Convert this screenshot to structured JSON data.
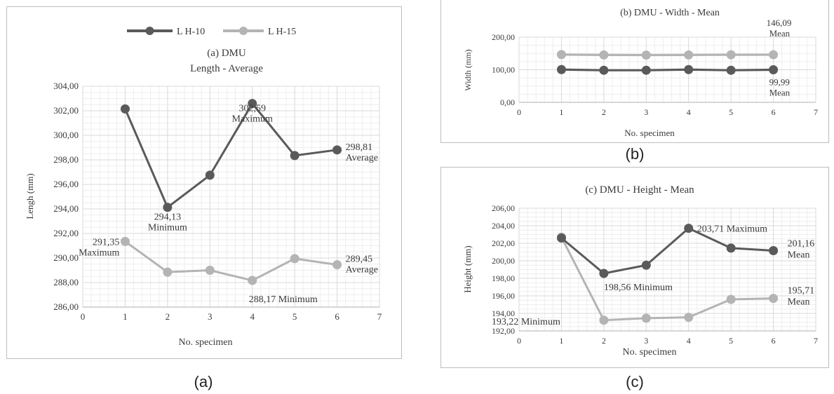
{
  "captions": {
    "a": "(a)",
    "b": "(b)",
    "c": "(c)"
  },
  "colors": {
    "lh10": "#5a5a5a",
    "lh15": "#b4b4b4",
    "grid": "#d9d9d9",
    "axis": "#bfbfbf",
    "text": "#3a3a3a"
  },
  "chart_data": [
    {
      "id": "a",
      "type": "line",
      "title": "(a) DMU",
      "subtitle": "Length - Average",
      "xlabel": "No. specimen",
      "ylabel": "Lengh (mm)",
      "xlim": [
        0,
        7
      ],
      "ylim": [
        286,
        304
      ],
      "yticks": [
        286,
        288,
        290,
        292,
        294,
        296,
        298,
        300,
        302,
        304
      ],
      "ytick_labels": [
        "286,00",
        "288,00",
        "290,00",
        "292,00",
        "294,00",
        "296,00",
        "298,00",
        "300,00",
        "302,00",
        "304,00"
      ],
      "xticks": [
        0,
        1,
        2,
        3,
        4,
        5,
        6,
        7
      ],
      "legend_position": "top",
      "x": [
        1,
        2,
        3,
        4,
        5,
        6
      ],
      "series": [
        {
          "name": "L H-10",
          "values": [
            302.15,
            294.13,
            296.75,
            302.59,
            298.35,
            298.81
          ]
        },
        {
          "name": "L  H-15",
          "values": [
            291.35,
            288.85,
            289.0,
            288.17,
            289.95,
            289.45
          ]
        }
      ],
      "annotations": [
        {
          "text": "294,13",
          "x": 2,
          "y": 294.13
        },
        {
          "text": "Minimum",
          "x": 2,
          "y": 294.13
        },
        {
          "text": "302,59",
          "x": 4,
          "y": 302.59
        },
        {
          "text": "Maximum",
          "x": 4,
          "y": 302.59
        },
        {
          "text": "298,81",
          "x": 6,
          "y": 298.81
        },
        {
          "text": "Average",
          "x": 6,
          "y": 298.81
        },
        {
          "text": "291,35",
          "x": 1,
          "y": 291.35
        },
        {
          "text": "Maximum",
          "x": 1,
          "y": 291.35
        },
        {
          "text": "289,45",
          "x": 6,
          "y": 289.45
        },
        {
          "text": "Average",
          "x": 6,
          "y": 289.45
        },
        {
          "text": "288,17 Minimum",
          "x": 4,
          "y": 288.17
        }
      ]
    },
    {
      "id": "b",
      "type": "line",
      "title": "(b) DMU - Width - Mean",
      "xlabel": "No. specimen",
      "ylabel": "Width (mm)",
      "xlim": [
        0,
        7
      ],
      "ylim": [
        0,
        200
      ],
      "yticks": [
        0,
        100,
        200
      ],
      "ytick_labels": [
        "0,00",
        "100,00",
        "200,00"
      ],
      "xticks": [
        0,
        1,
        2,
        3,
        4,
        5,
        6,
        7
      ],
      "x": [
        1,
        2,
        3,
        4,
        5,
        6
      ],
      "series": [
        {
          "name": "L H-10",
          "values": [
            100.5,
            98.5,
            98.5,
            100.5,
            98.5,
            99.99
          ]
        },
        {
          "name": "L  H-15",
          "values": [
            146.5,
            145.5,
            145.0,
            145.5,
            146.0,
            146.09
          ]
        }
      ],
      "annotations": [
        {
          "text": "146,09",
          "x": 6,
          "y": 146.09
        },
        {
          "text": "Mean",
          "x": 6,
          "y": 146.09
        },
        {
          "text": "99,99",
          "x": 6,
          "y": 99.99
        },
        {
          "text": "Mean",
          "x": 6,
          "y": 99.99
        }
      ]
    },
    {
      "id": "c",
      "type": "line",
      "title": "(c) DMU - Height - Mean",
      "xlabel": "No. specimen",
      "ylabel": "Height (mm)",
      "xlim": [
        0,
        7
      ],
      "ylim": [
        192,
        206
      ],
      "yticks": [
        192,
        194,
        196,
        198,
        200,
        202,
        204,
        206
      ],
      "ytick_labels": [
        "192,00",
        "194,00",
        "196,00",
        "198,00",
        "200,00",
        "202,00",
        "204,00",
        "206,00"
      ],
      "xticks": [
        0,
        1,
        2,
        3,
        4,
        5,
        6,
        7
      ],
      "x": [
        1,
        2,
        3,
        4,
        5,
        6
      ],
      "series": [
        {
          "name": "L H-10",
          "values": [
            202.6,
            198.56,
            199.5,
            203.71,
            201.45,
            201.16
          ]
        },
        {
          "name": "L  H-15",
          "values": [
            202.7,
            193.22,
            193.45,
            193.55,
            195.6,
            195.71
          ]
        }
      ],
      "annotations": [
        {
          "text": "203,71 Maximum",
          "x": 4,
          "y": 203.71
        },
        {
          "text": "198,56 Minimum",
          "x": 2,
          "y": 198.56
        },
        {
          "text": "201,16",
          "x": 6,
          "y": 201.16
        },
        {
          "text": "Mean",
          "x": 6,
          "y": 201.16
        },
        {
          "text": "193,22 Minimum",
          "x": 2,
          "y": 193.22
        },
        {
          "text": "195,71",
          "x": 6,
          "y": 195.71
        },
        {
          "text": "Mean",
          "x": 6,
          "y": 195.71
        }
      ]
    }
  ]
}
